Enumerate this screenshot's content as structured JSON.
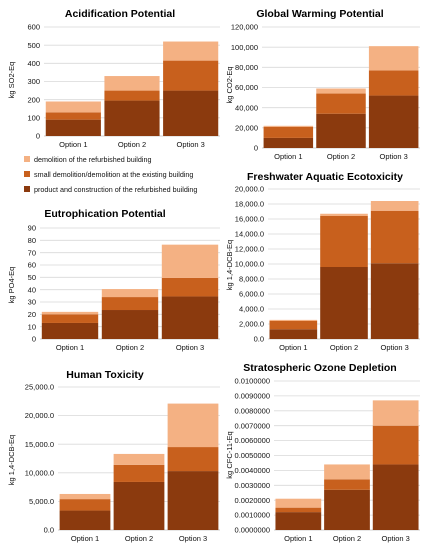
{
  "colors": {
    "product": "#8b3a0e",
    "small_demolition": "#c8601d",
    "demolition": "#f4b183",
    "grid": "#d9d9d9",
    "axis": "#bfbfbf"
  },
  "legend": {
    "items": [
      {
        "label": "demolition of the refurbished building",
        "color": "#f4b183"
      },
      {
        "label": "small demolition/demolition at the existing building",
        "color": "#c8601d"
      },
      {
        "label": "product and construction of the refurbished building",
        "color": "#8b3a0e"
      }
    ]
  },
  "chart_data": [
    {
      "type": "bar",
      "stacked": true,
      "title": "Acidification Potential",
      "ylabel": "kg SO2-Eq",
      "categories": [
        "Option 1",
        "Option 2",
        "Option 3"
      ],
      "ylim": [
        0,
        600
      ],
      "yticks": [
        "0",
        "100",
        "200",
        "300",
        "400",
        "500",
        "600"
      ],
      "series": [
        {
          "values": [
            90,
            195,
            250
          ],
          "color": "#8b3a0e"
        },
        {
          "values": [
            40,
            55,
            165
          ],
          "color": "#c8601d"
        },
        {
          "values": [
            60,
            80,
            105
          ],
          "color": "#f4b183"
        }
      ]
    },
    {
      "type": "bar",
      "stacked": true,
      "title": "Global Warming Potential",
      "ylabel": "kg CO2-Eq",
      "categories": [
        "Option 1",
        "Option 2",
        "Option 3"
      ],
      "ylim": [
        0,
        120000
      ],
      "yticks": [
        "0",
        "20,000",
        "40,000",
        "60,000",
        "80,000",
        "100,000",
        "120,000"
      ],
      "series": [
        {
          "values": [
            10000,
            34000,
            52000
          ],
          "color": "#8b3a0e"
        },
        {
          "values": [
            11000,
            20000,
            25000
          ],
          "color": "#c8601d"
        },
        {
          "values": [
            1000,
            5000,
            24000
          ],
          "color": "#f4b183"
        }
      ]
    },
    {
      "type": "bar",
      "stacked": true,
      "title": "Eutrophication Potential",
      "ylabel": "kg PO4-Eq",
      "categories": [
        "Option 1",
        "Option 2",
        "Option 3"
      ],
      "ylim": [
        0,
        90
      ],
      "yticks": [
        "0",
        "10",
        "20",
        "30",
        "40",
        "50",
        "60",
        "70",
        "80",
        "90"
      ],
      "series": [
        {
          "values": [
            13,
            23.5,
            34.5
          ],
          "color": "#8b3a0e"
        },
        {
          "values": [
            7,
            10.5,
            15
          ],
          "color": "#c8601d"
        },
        {
          "values": [
            2,
            6.5,
            27
          ],
          "color": "#f4b183"
        }
      ]
    },
    {
      "type": "bar",
      "stacked": true,
      "title": "Freshwater Aquatic Ecotoxicity",
      "ylabel": "kg 1,4-DCB-Eq",
      "categories": [
        "Option 1",
        "Option 2",
        "Option 3"
      ],
      "ylim": [
        0,
        20000
      ],
      "yticks": [
        "0.0",
        "2,000.0",
        "4,000.0",
        "6,000.0",
        "8,000.0",
        "10,000.0",
        "12,000.0",
        "14,000.0",
        "16,000.0",
        "18,000.0",
        "20,000.0"
      ],
      "series": [
        {
          "values": [
            1300,
            9600,
            10100
          ],
          "color": "#8b3a0e"
        },
        {
          "values": [
            1100,
            6800,
            7000
          ],
          "color": "#c8601d"
        },
        {
          "values": [
            150,
            300,
            1300
          ],
          "color": "#f4b183"
        }
      ]
    },
    {
      "type": "bar",
      "stacked": true,
      "title": "Human Toxicity",
      "ylabel": "kg 1,4-DCB-Eq",
      "categories": [
        "Option 1",
        "Option 2",
        "Option 3"
      ],
      "ylim": [
        0,
        25000
      ],
      "yticks": [
        "0.0",
        "5,000.0",
        "10,000.0",
        "15,000.0",
        "20,000.0",
        "25,000.0"
      ],
      "series": [
        {
          "values": [
            3400,
            8400,
            10300
          ],
          "color": "#8b3a0e"
        },
        {
          "values": [
            2000,
            3000,
            4200
          ],
          "color": "#c8601d"
        },
        {
          "values": [
            900,
            1900,
            7600
          ],
          "color": "#f4b183"
        }
      ]
    },
    {
      "type": "bar",
      "stacked": true,
      "title": "Stratospheric Ozone Depletion",
      "ylabel": "kg CFC-11-Eq",
      "categories": [
        "Option 1",
        "Option 2",
        "Option 3"
      ],
      "ylim": [
        0,
        0.01
      ],
      "yticks": [
        "0.0000000",
        "0.0010000",
        "0.0020000",
        "0.0030000",
        "0.0040000",
        "0.0050000",
        "0.0060000",
        "0.0070000",
        "0.0080000",
        "0.0090000",
        "0.0100000"
      ],
      "series": [
        {
          "values": [
            0.0012,
            0.0027,
            0.0044
          ],
          "color": "#8b3a0e"
        },
        {
          "values": [
            0.0003,
            0.0007,
            0.0026
          ],
          "color": "#c8601d"
        },
        {
          "values": [
            0.0006,
            0.001,
            0.0017
          ],
          "color": "#f4b183"
        }
      ]
    }
  ]
}
